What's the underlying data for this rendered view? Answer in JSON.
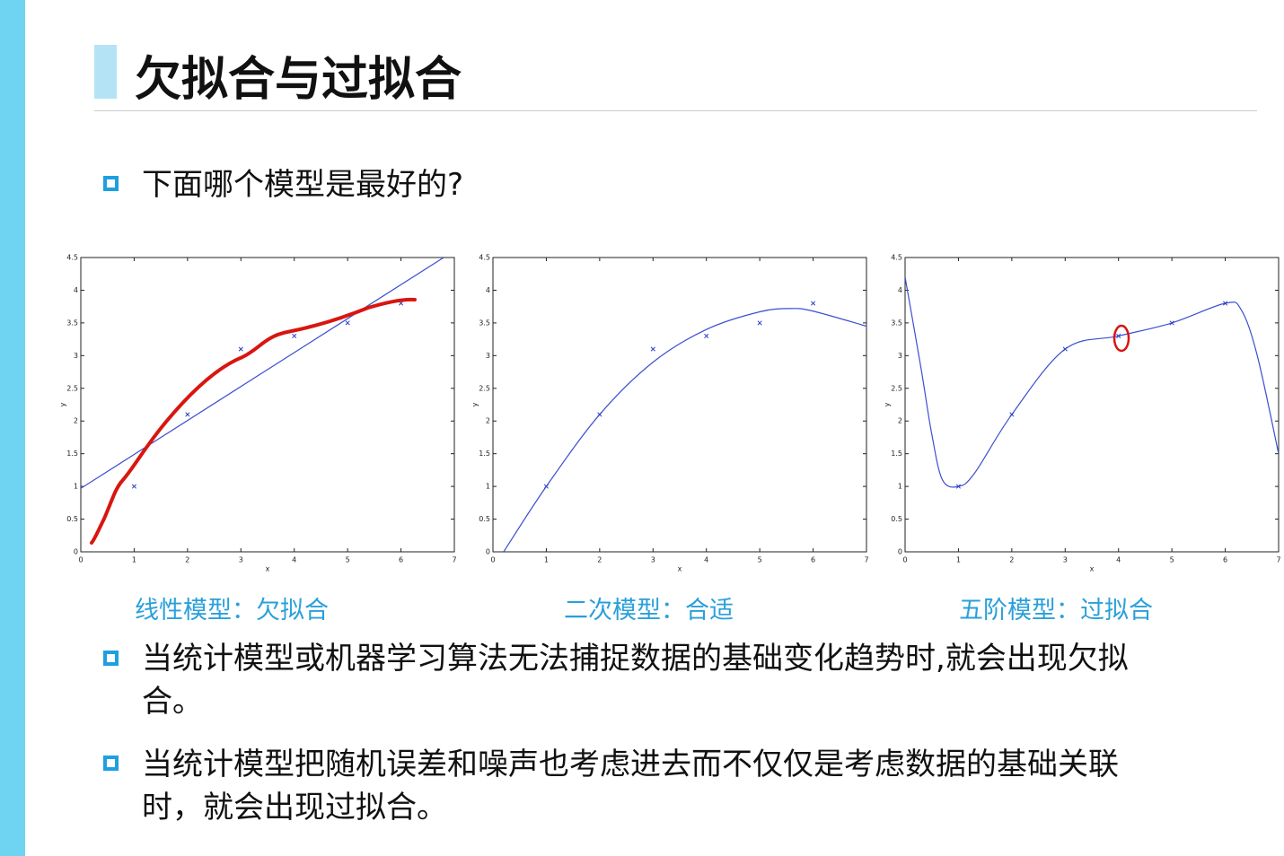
{
  "title": "欠拟合与过拟合",
  "question": "下面哪个模型是最好的?",
  "bullets": [
    "当统计模型或机器学习算法无法捕捉数据的基础变化趋势时,就会出现欠拟合。",
    "当统计模型把随机误差和噪声也考虑进去而不仅仅是考虑数据的基础关联时，就会出现过拟合。"
  ],
  "chart_data": [
    {
      "type": "scatter",
      "caption": "线性模型：欠拟合",
      "xlabel": "x",
      "ylabel": "y",
      "xlim": [
        0,
        7
      ],
      "ylim": [
        0,
        4.5
      ],
      "xticks": [
        0,
        1,
        2,
        3,
        4,
        5,
        6,
        7
      ],
      "yticks": [
        0,
        0.5,
        1,
        1.5,
        2,
        2.5,
        3,
        3.5,
        4,
        4.5
      ],
      "points": {
        "color": "#2a3fc8",
        "x": [
          1,
          2,
          3,
          4,
          5,
          6
        ],
        "y": [
          1,
          2.1,
          3.1,
          3.3,
          3.5,
          3.8
        ]
      },
      "curve": {
        "color": "#3b4fd0",
        "x": [
          0,
          6.8
        ],
        "y": [
          0.97,
          4.5
        ]
      }
    },
    {
      "type": "scatter",
      "caption": "二次模型：合适",
      "xlabel": "x",
      "ylabel": "y",
      "xlim": [
        0,
        7
      ],
      "ylim": [
        0,
        4.5
      ],
      "xticks": [
        0,
        1,
        2,
        3,
        4,
        5,
        6,
        7
      ],
      "yticks": [
        0,
        0.5,
        1,
        1.5,
        2,
        2.5,
        3,
        3.5,
        4,
        4.5
      ],
      "points": {
        "color": "#2a3fc8",
        "x": [
          1,
          2,
          3,
          4,
          5,
          6
        ],
        "y": [
          1,
          2.1,
          3.1,
          3.3,
          3.5,
          3.8
        ]
      },
      "curve": {
        "color": "#3b4fd0",
        "x": [
          0.2,
          1,
          2,
          3,
          4,
          5,
          5.6,
          6,
          7
        ],
        "y": [
          0,
          1.0,
          2.1,
          2.9,
          3.4,
          3.67,
          3.72,
          3.68,
          3.45
        ]
      }
    },
    {
      "type": "scatter",
      "caption": "五阶模型：过拟合",
      "xlabel": "x",
      "ylabel": "y",
      "xlim": [
        0,
        7
      ],
      "ylim": [
        0,
        4.5
      ],
      "xticks": [
        0,
        1,
        2,
        3,
        4,
        5,
        6,
        7
      ],
      "yticks": [
        0,
        0.5,
        1,
        1.5,
        2,
        2.5,
        3,
        3.5,
        4,
        4.5
      ],
      "points": {
        "color": "#2a3fc8",
        "x": [
          1,
          2,
          3,
          4,
          5,
          6
        ],
        "y": [
          1,
          2.1,
          3.1,
          3.3,
          3.5,
          3.8
        ]
      },
      "curve": {
        "color": "#3b4fd0",
        "x": [
          0,
          0.3,
          0.5,
          0.7,
          1,
          1.3,
          2,
          3,
          4,
          5,
          6,
          6.3,
          6.6,
          7
        ],
        "y": [
          4.2,
          2.8,
          1.8,
          1.1,
          1.0,
          1.2,
          2.1,
          3.1,
          3.3,
          3.5,
          3.8,
          3.7,
          3.0,
          1.5
        ]
      }
    }
  ]
}
